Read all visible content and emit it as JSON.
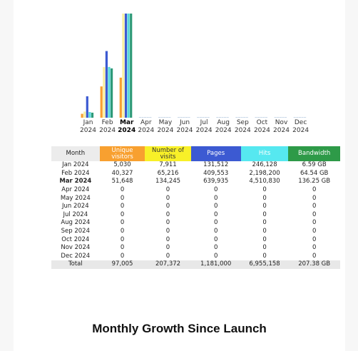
{
  "chart_data": {
    "type": "bar",
    "categories": [
      "Jan 2024",
      "Feb 2024",
      "Mar 2024",
      "Apr 2024",
      "May 2024",
      "Jun 2024",
      "Jul 2024",
      "Aug 2024",
      "Sep 2024",
      "Oct 2024",
      "Nov 2024",
      "Dec 2024"
    ],
    "x_labels": [
      {
        "month": "Jan",
        "year": "2024"
      },
      {
        "month": "Feb",
        "year": "2024"
      },
      {
        "month": "Mar",
        "year": "2024"
      },
      {
        "month": "Apr",
        "year": "2024"
      },
      {
        "month": "May",
        "year": "2024"
      },
      {
        "month": "Jun",
        "year": "2024"
      },
      {
        "month": "Jul",
        "year": "2024"
      },
      {
        "month": "Aug",
        "year": "2024"
      },
      {
        "month": "Sep",
        "year": "2024"
      },
      {
        "month": "Oct",
        "year": "2024"
      },
      {
        "month": "Nov",
        "year": "2024"
      },
      {
        "month": "Dec",
        "year": "2024"
      }
    ],
    "highlight_index": 2,
    "series": [
      {
        "name": "Unique visitors",
        "color": "#f8a030",
        "values": [
          5030,
          40327,
          51648,
          0,
          0,
          0,
          0,
          0,
          0,
          0,
          0,
          0
        ]
      },
      {
        "name": "Number of visits",
        "color": "#f8f0a0",
        "values": [
          7911,
          65216,
          134245,
          0,
          0,
          0,
          0,
          0,
          0,
          0,
          0,
          0
        ]
      },
      {
        "name": "Pages",
        "color": "#3c5ad2",
        "values": [
          131512,
          409553,
          639935,
          0,
          0,
          0,
          0,
          0,
          0,
          0,
          0,
          0
        ]
      },
      {
        "name": "Hits",
        "color": "#56d8d8",
        "values": [
          246128,
          2198200,
          4510830,
          0,
          0,
          0,
          0,
          0,
          0,
          0,
          0,
          0
        ]
      },
      {
        "name": "Bandwidth",
        "color": "#2e9a78",
        "values": [
          6.59,
          64.54,
          136.25,
          0,
          0,
          0,
          0,
          0,
          0,
          0,
          0,
          0
        ]
      }
    ]
  },
  "table": {
    "headers": {
      "month": "Month",
      "unique": "Unique visitors",
      "visits": "Number of visits",
      "pages": "Pages",
      "hits": "Hits",
      "bandwidth": "Bandwidth"
    },
    "rows": [
      {
        "month": "Jan 2024",
        "unique": "5,030",
        "visits": "7,911",
        "pages": "131,512",
        "hits": "246,128",
        "bandwidth": "6.59 GB"
      },
      {
        "month": "Feb 2024",
        "unique": "40,327",
        "visits": "65,216",
        "pages": "409,553",
        "hits": "2,198,200",
        "bandwidth": "64.54 GB"
      },
      {
        "month": "Mar 2024",
        "unique": "51,648",
        "visits": "134,245",
        "pages": "639,935",
        "hits": "4,510,830",
        "bandwidth": "136.25 GB"
      },
      {
        "month": "Apr 2024",
        "unique": "0",
        "visits": "0",
        "pages": "0",
        "hits": "0",
        "bandwidth": "0"
      },
      {
        "month": "May 2024",
        "unique": "0",
        "visits": "0",
        "pages": "0",
        "hits": "0",
        "bandwidth": "0"
      },
      {
        "month": "Jun 2024",
        "unique": "0",
        "visits": "0",
        "pages": "0",
        "hits": "0",
        "bandwidth": "0"
      },
      {
        "month": "Jul 2024",
        "unique": "0",
        "visits": "0",
        "pages": "0",
        "hits": "0",
        "bandwidth": "0"
      },
      {
        "month": "Aug 2024",
        "unique": "0",
        "visits": "0",
        "pages": "0",
        "hits": "0",
        "bandwidth": "0"
      },
      {
        "month": "Sep 2024",
        "unique": "0",
        "visits": "0",
        "pages": "0",
        "hits": "0",
        "bandwidth": "0"
      },
      {
        "month": "Oct 2024",
        "unique": "0",
        "visits": "0",
        "pages": "0",
        "hits": "0",
        "bandwidth": "0"
      },
      {
        "month": "Nov 2024",
        "unique": "0",
        "visits": "0",
        "pages": "0",
        "hits": "0",
        "bandwidth": "0"
      },
      {
        "month": "Dec 2024",
        "unique": "0",
        "visits": "0",
        "pages": "0",
        "hits": "0",
        "bandwidth": "0"
      }
    ],
    "total": {
      "label": "Total",
      "unique": "97,005",
      "visits": "207,372",
      "pages": "1,181,000",
      "hits": "6,955,158",
      "bandwidth": "207.38 GB"
    }
  },
  "caption": "Monthly Growth Since Launch"
}
